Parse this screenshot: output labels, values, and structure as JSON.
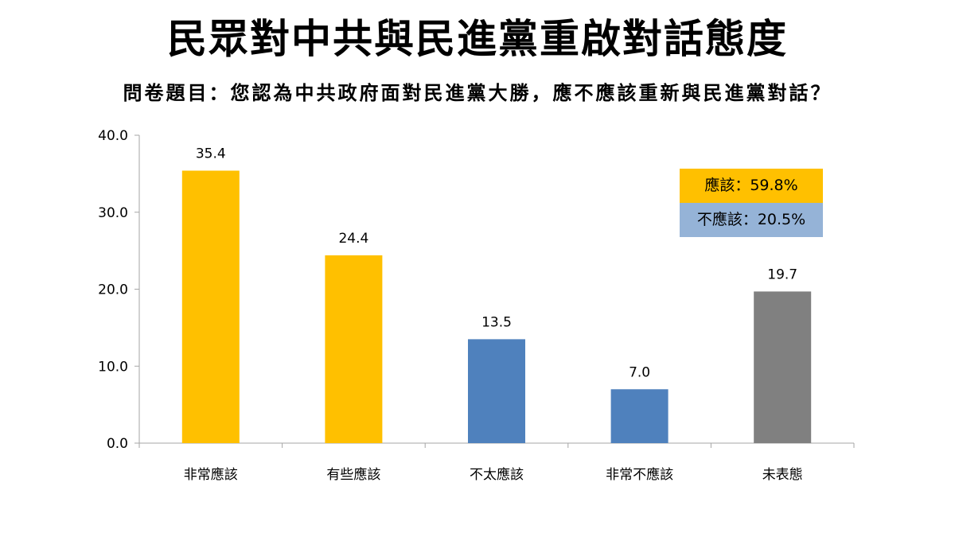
{
  "title": "民眾對中共與民進黨重啟對話態度",
  "subtitle": "問卷題目：您認為中共政府面對民進黨大勝，應不應該重新與民進黨對話？",
  "colors": {
    "yellow": "#FFC000",
    "blue": "#4F81BD",
    "gray": "#808080",
    "legend_yellow": "#FFC000",
    "legend_blue": "#95B3D7",
    "axis": "#A6A6A6"
  },
  "summary": {
    "yes_label": "應該：59.8%",
    "no_label": "不應該：20.5%"
  },
  "chart_data": {
    "type": "bar",
    "categories": [
      "非常應該",
      "有些應該",
      "不太應該",
      "非常不應該",
      "未表態"
    ],
    "values": [
      35.4,
      24.4,
      13.5,
      7.0,
      19.7
    ],
    "value_labels": [
      "35.4",
      "24.4",
      "13.5",
      "7.0",
      "19.7"
    ],
    "bar_colors": [
      "#FFC000",
      "#FFC000",
      "#4F81BD",
      "#4F81BD",
      "#808080"
    ],
    "ylim": [
      0,
      40
    ],
    "yticks": [
      "0.0",
      "10.0",
      "20.0",
      "30.0",
      "40.0"
    ],
    "ytick_values": [
      0,
      10,
      20,
      30,
      40
    ],
    "grid": false,
    "legend": "top-right"
  }
}
